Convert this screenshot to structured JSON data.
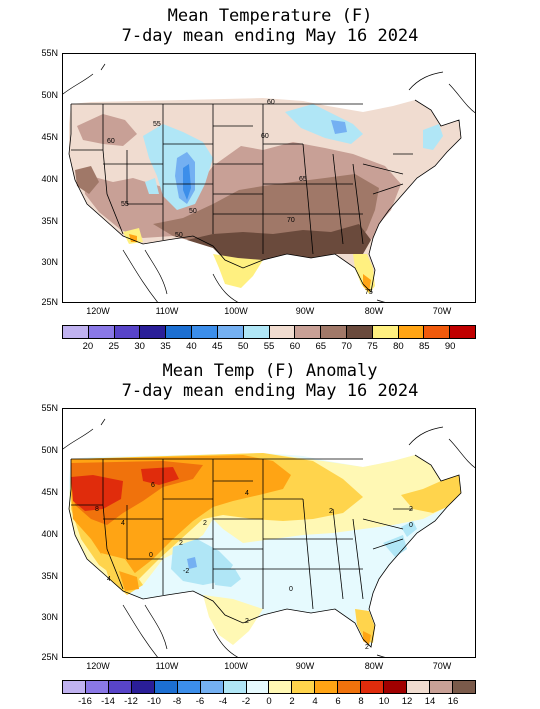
{
  "map1": {
    "title_line1": "Mean Temperature (F)",
    "title_line2": "7-day mean ending May 16 2024",
    "lat_labels": [
      "55N",
      "50N",
      "45N",
      "40N",
      "35N",
      "30N",
      "25N"
    ],
    "lon_labels": [
      "120W",
      "110W",
      "100W",
      "90W",
      "80W",
      "70W"
    ],
    "contour_labels": [
      "55",
      "60",
      "60",
      "65",
      "70",
      "50",
      "50",
      "55",
      "60",
      "75"
    ],
    "legend": {
      "colors": [
        "#c0b2f0",
        "#8a78e6",
        "#5844c8",
        "#2a1e98",
        "#1c6fd2",
        "#3c8eea",
        "#74b0f2",
        "#b0e6f6",
        "#f0dcd0",
        "#c8a096",
        "#a07868",
        "#6a4a3c",
        "#fff080",
        "#ffa414",
        "#f05a0c",
        "#c00000"
      ],
      "ticks": [
        "20",
        "25",
        "30",
        "35",
        "40",
        "45",
        "50",
        "55",
        "60",
        "65",
        "70",
        "75",
        "80",
        "85",
        "90"
      ]
    }
  },
  "map2": {
    "title_line1": "Mean Temp (F) Anomaly",
    "title_line2": "7-day mean ending May 16 2024",
    "lat_labels": [
      "55N",
      "50N",
      "45N",
      "40N",
      "35N",
      "30N",
      "25N"
    ],
    "lon_labels": [
      "120W",
      "110W",
      "100W",
      "90W",
      "80W",
      "70W"
    ],
    "contour_labels": [
      "6",
      "8",
      "4",
      "4",
      "2",
      "2",
      "0",
      "-2",
      "4",
      "2",
      "2",
      "0",
      "2",
      "0",
      "2"
    ],
    "legend": {
      "colors": [
        "#c0b2f0",
        "#8a78e6",
        "#5844c8",
        "#2a1e98",
        "#1c6fd2",
        "#3c8eea",
        "#74b0f2",
        "#b0e6f6",
        "#e6fafe",
        "#fff8b4",
        "#ffd44c",
        "#ffa414",
        "#f0720c",
        "#e02c0c",
        "#a00000",
        "#f0dcd0",
        "#c8a096",
        "#7a5a4a"
      ],
      "ticks": [
        "-16",
        "-14",
        "-12",
        "-10",
        "-8",
        "-6",
        "-4",
        "-2",
        "0",
        "2",
        "4",
        "6",
        "8",
        "10",
        "12",
        "14",
        "16"
      ]
    }
  }
}
